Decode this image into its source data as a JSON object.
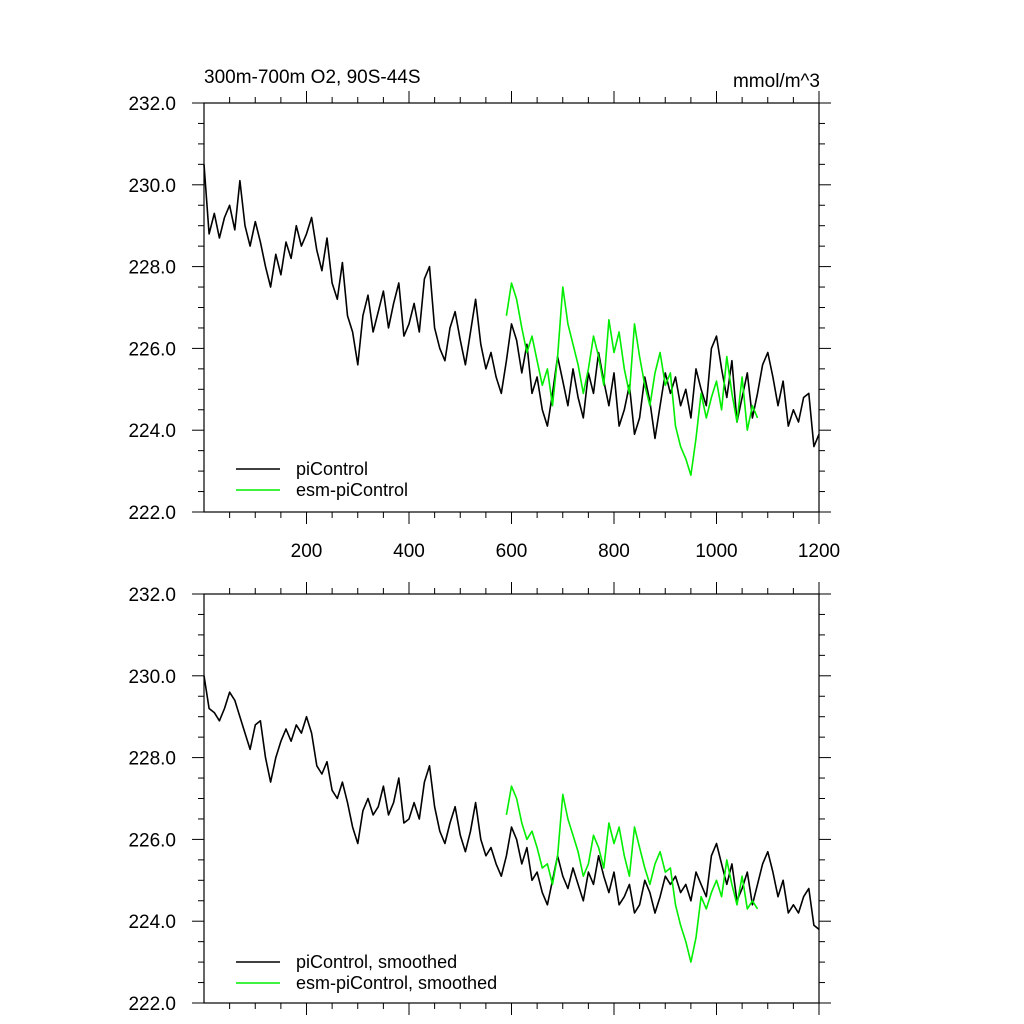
{
  "chart_data": [
    {
      "type": "line",
      "title": "300m-700m O2, 90S-44S",
      "units_label": "mmol/m^3",
      "xlim": [
        0,
        1200
      ],
      "ylim": [
        222,
        232
      ],
      "x_ticks": [
        200,
        400,
        600,
        800,
        1000,
        1200
      ],
      "x_tick_labels": [
        "200",
        "400",
        "600",
        "800",
        "1000",
        "1200"
      ],
      "y_ticks": [
        222,
        224,
        226,
        228,
        230,
        232
      ],
      "y_tick_labels": [
        "222.0",
        "224.0",
        "226.0",
        "228.0",
        "230.0",
        "232.0"
      ],
      "legend_position": "bottom-left",
      "series": [
        {
          "name": "piControl",
          "color": "#000000",
          "x": [
            0,
            10,
            20,
            30,
            40,
            50,
            60,
            70,
            80,
            90,
            100,
            110,
            120,
            130,
            140,
            150,
            160,
            170,
            180,
            190,
            200,
            210,
            220,
            230,
            240,
            250,
            260,
            270,
            280,
            290,
            300,
            310,
            320,
            330,
            340,
            350,
            360,
            370,
            380,
            390,
            400,
            410,
            420,
            430,
            440,
            450,
            460,
            470,
            480,
            490,
            500,
            510,
            520,
            530,
            540,
            550,
            560,
            570,
            580,
            590,
            600,
            610,
            620,
            630,
            640,
            650,
            660,
            670,
            680,
            690,
            700,
            710,
            720,
            730,
            740,
            750,
            760,
            770,
            780,
            790,
            800,
            810,
            820,
            830,
            840,
            850,
            860,
            870,
            880,
            890,
            900,
            910,
            920,
            930,
            940,
            950,
            960,
            970,
            980,
            990,
            1000,
            1010,
            1020,
            1030,
            1040,
            1050,
            1060,
            1070,
            1080,
            1090,
            1100,
            1110,
            1120,
            1130,
            1140,
            1150,
            1160,
            1170,
            1180,
            1190,
            1200
          ],
          "values": [
            230.5,
            228.8,
            229.3,
            228.7,
            229.2,
            229.5,
            228.9,
            230.1,
            229.0,
            228.5,
            229.1,
            228.6,
            228.0,
            227.5,
            228.3,
            227.8,
            228.6,
            228.2,
            229.0,
            228.5,
            228.8,
            229.2,
            228.4,
            227.9,
            228.7,
            227.6,
            227.2,
            228.1,
            226.8,
            226.4,
            225.6,
            226.8,
            227.3,
            226.4,
            226.9,
            227.4,
            226.5,
            227.1,
            227.6,
            226.3,
            226.6,
            227.1,
            226.4,
            227.7,
            228.0,
            226.5,
            226.0,
            225.7,
            226.5,
            226.9,
            226.2,
            225.6,
            226.4,
            227.2,
            226.1,
            225.5,
            225.9,
            225.3,
            224.9,
            225.7,
            226.6,
            226.2,
            225.4,
            226.1,
            224.9,
            225.3,
            224.5,
            224.1,
            224.9,
            225.8,
            225.2,
            224.6,
            225.5,
            224.8,
            224.3,
            225.4,
            224.9,
            225.9,
            225.2,
            224.6,
            225.4,
            224.1,
            224.5,
            225.1,
            223.9,
            224.3,
            225.3,
            224.7,
            223.8,
            224.6,
            225.4,
            224.9,
            225.3,
            224.6,
            225.0,
            224.3,
            225.5,
            225.0,
            224.6,
            226.0,
            226.3,
            225.5,
            224.8,
            225.7,
            224.2,
            224.8,
            225.4,
            224.3,
            224.9,
            225.6,
            225.9,
            225.3,
            224.6,
            225.2,
            224.1,
            224.5,
            224.2,
            224.8,
            224.9,
            223.6,
            223.9
          ]
        },
        {
          "name": "esm-piControl",
          "color": "#00ee00",
          "x": [
            590,
            600,
            610,
            620,
            630,
            640,
            650,
            660,
            670,
            680,
            690,
            700,
            710,
            720,
            730,
            740,
            750,
            760,
            770,
            780,
            790,
            800,
            810,
            820,
            830,
            840,
            850,
            860,
            870,
            880,
            890,
            900,
            910,
            920,
            930,
            940,
            950,
            960,
            970,
            980,
            990,
            1000,
            1010,
            1020,
            1030,
            1040,
            1050,
            1060,
            1070,
            1080
          ],
          "values": [
            226.8,
            227.6,
            227.2,
            226.5,
            225.9,
            226.3,
            225.7,
            225.1,
            225.5,
            224.6,
            225.8,
            227.5,
            226.6,
            226.1,
            225.6,
            224.9,
            225.5,
            226.3,
            225.8,
            225.1,
            226.7,
            225.9,
            226.4,
            225.5,
            224.9,
            226.6,
            225.8,
            225.1,
            224.6,
            225.4,
            225.9,
            225.1,
            225.4,
            224.1,
            223.6,
            223.3,
            222.9,
            223.8,
            224.9,
            224.3,
            224.8,
            225.2,
            224.5,
            225.8,
            224.9,
            224.2,
            225.3,
            224.0,
            224.6,
            224.3
          ]
        }
      ]
    },
    {
      "type": "line",
      "xlim": [
        0,
        1200
      ],
      "ylim": [
        222,
        232
      ],
      "y_ticks": [
        222,
        224,
        226,
        228,
        230,
        232
      ],
      "y_tick_labels": [
        "222.0",
        "224.0",
        "226.0",
        "228.0",
        "230.0",
        "232.0"
      ],
      "legend_position": "bottom-left",
      "series": [
        {
          "name": "piControl, smoothed",
          "color": "#000000",
          "x": [
            0,
            10,
            20,
            30,
            40,
            50,
            60,
            70,
            80,
            90,
            100,
            110,
            120,
            130,
            140,
            150,
            160,
            170,
            180,
            190,
            200,
            210,
            220,
            230,
            240,
            250,
            260,
            270,
            280,
            290,
            300,
            310,
            320,
            330,
            340,
            350,
            360,
            370,
            380,
            390,
            400,
            410,
            420,
            430,
            440,
            450,
            460,
            470,
            480,
            490,
            500,
            510,
            520,
            530,
            540,
            550,
            560,
            570,
            580,
            590,
            600,
            610,
            620,
            630,
            640,
            650,
            660,
            670,
            680,
            690,
            700,
            710,
            720,
            730,
            740,
            750,
            760,
            770,
            780,
            790,
            800,
            810,
            820,
            830,
            840,
            850,
            860,
            870,
            880,
            890,
            900,
            910,
            920,
            930,
            940,
            950,
            960,
            970,
            980,
            990,
            1000,
            1010,
            1020,
            1030,
            1040,
            1050,
            1060,
            1070,
            1080,
            1090,
            1100,
            1110,
            1120,
            1130,
            1140,
            1150,
            1160,
            1170,
            1180,
            1190,
            1200
          ],
          "values": [
            230.0,
            229.2,
            229.1,
            228.9,
            229.2,
            229.6,
            229.4,
            229.0,
            228.6,
            228.2,
            228.8,
            228.9,
            228.0,
            227.4,
            228.0,
            228.4,
            228.7,
            228.4,
            228.8,
            228.6,
            229.0,
            228.6,
            227.8,
            227.6,
            227.9,
            227.2,
            227.0,
            227.4,
            226.9,
            226.3,
            225.9,
            226.7,
            227.0,
            226.6,
            226.8,
            227.3,
            226.6,
            226.9,
            227.5,
            226.4,
            226.5,
            226.9,
            226.5,
            227.4,
            227.8,
            226.8,
            226.2,
            225.9,
            226.4,
            226.8,
            226.1,
            225.7,
            226.2,
            226.9,
            226.0,
            225.6,
            225.8,
            225.4,
            225.1,
            225.6,
            226.3,
            226.0,
            225.4,
            225.8,
            225.0,
            225.2,
            224.7,
            224.4,
            225.0,
            225.6,
            225.1,
            224.8,
            225.3,
            224.9,
            224.5,
            225.2,
            224.9,
            225.6,
            225.1,
            224.7,
            225.2,
            224.4,
            224.6,
            224.9,
            224.2,
            224.4,
            225.0,
            224.7,
            224.2,
            224.6,
            225.1,
            224.9,
            225.1,
            224.7,
            224.9,
            224.5,
            225.2,
            224.9,
            224.6,
            225.6,
            225.9,
            225.4,
            224.9,
            225.4,
            224.5,
            224.8,
            225.2,
            224.4,
            224.9,
            225.4,
            225.7,
            225.2,
            224.6,
            225.0,
            224.2,
            224.4,
            224.2,
            224.6,
            224.8,
            223.9,
            223.8
          ]
        },
        {
          "name": "esm-piControl, smoothed",
          "color": "#00ee00",
          "x": [
            590,
            600,
            610,
            620,
            630,
            640,
            650,
            660,
            670,
            680,
            690,
            700,
            710,
            720,
            730,
            740,
            750,
            760,
            770,
            780,
            790,
            800,
            810,
            820,
            830,
            840,
            850,
            860,
            870,
            880,
            890,
            900,
            910,
            920,
            930,
            940,
            950,
            960,
            970,
            980,
            990,
            1000,
            1010,
            1020,
            1030,
            1040,
            1050,
            1060,
            1070,
            1080
          ],
          "values": [
            226.6,
            227.3,
            227.0,
            226.4,
            226.0,
            226.2,
            225.8,
            225.3,
            225.4,
            224.9,
            225.6,
            227.1,
            226.5,
            226.1,
            225.7,
            225.1,
            225.4,
            226.1,
            225.8,
            225.3,
            226.4,
            225.9,
            226.3,
            225.6,
            225.1,
            226.3,
            225.8,
            225.3,
            224.9,
            225.4,
            225.7,
            225.2,
            225.3,
            224.4,
            223.9,
            223.5,
            223.0,
            223.6,
            224.6,
            224.3,
            224.7,
            225.0,
            224.6,
            225.5,
            224.9,
            224.4,
            225.1,
            224.3,
            224.5,
            224.3
          ]
        }
      ]
    }
  ]
}
